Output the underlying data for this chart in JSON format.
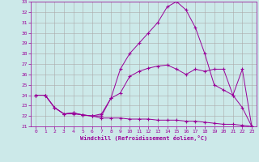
{
  "xlabel": "Windchill (Refroidissement éolien,°C)",
  "background_color": "#cce9e9",
  "line_color": "#990099",
  "grid_color": "#aaaaaa",
  "xlim": [
    -0.5,
    23.5
  ],
  "ylim": [
    21,
    33
  ],
  "yticks": [
    21,
    22,
    23,
    24,
    25,
    26,
    27,
    28,
    29,
    30,
    31,
    32,
    33
  ],
  "xticks": [
    0,
    1,
    2,
    3,
    4,
    5,
    6,
    7,
    8,
    9,
    10,
    11,
    12,
    13,
    14,
    15,
    16,
    17,
    18,
    19,
    20,
    21,
    22,
    23
  ],
  "line1_x": [
    0,
    1,
    2,
    3,
    4,
    5,
    6,
    7,
    8,
    9,
    10,
    11,
    12,
    13,
    14,
    15,
    16,
    17,
    18,
    19,
    20,
    21,
    22,
    23
  ],
  "line1_y": [
    24.0,
    24.0,
    22.8,
    22.2,
    22.2,
    22.1,
    22.0,
    21.8,
    21.8,
    21.8,
    21.7,
    21.7,
    21.7,
    21.6,
    21.6,
    21.6,
    21.5,
    21.5,
    21.4,
    21.3,
    21.2,
    21.2,
    21.1,
    21.0
  ],
  "line2_x": [
    0,
    1,
    2,
    3,
    4,
    5,
    6,
    7,
    8,
    9,
    10,
    11,
    12,
    13,
    14,
    15,
    16,
    17,
    18,
    19,
    20,
    21,
    22,
    23
  ],
  "line2_y": [
    24.0,
    24.0,
    22.8,
    22.2,
    22.3,
    22.1,
    22.0,
    22.2,
    23.7,
    24.2,
    25.8,
    26.3,
    26.6,
    26.8,
    26.9,
    26.5,
    26.0,
    26.5,
    26.3,
    26.5,
    26.5,
    24.0,
    22.8,
    21.0
  ],
  "line3_x": [
    0,
    1,
    2,
    3,
    4,
    5,
    6,
    7,
    8,
    9,
    10,
    11,
    12,
    13,
    14,
    15,
    16,
    17,
    18,
    19,
    20,
    21,
    22,
    23
  ],
  "line3_y": [
    24.0,
    24.0,
    22.8,
    22.2,
    22.3,
    22.1,
    22.0,
    22.0,
    23.7,
    26.5,
    28.0,
    29.0,
    30.0,
    31.0,
    32.5,
    33.0,
    32.2,
    30.5,
    28.0,
    25.0,
    24.5,
    24.0,
    26.5,
    21.0
  ]
}
